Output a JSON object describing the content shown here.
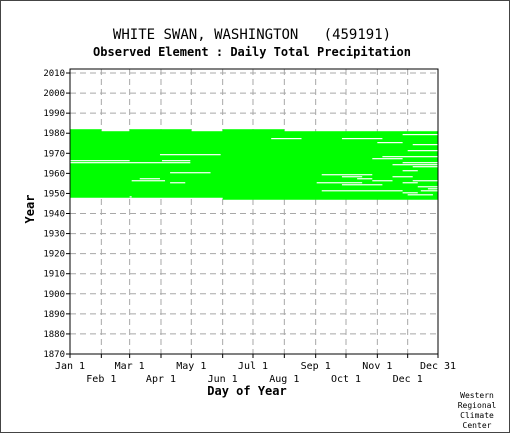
{
  "chart_data": {
    "type": "heatmap",
    "title": "WHITE SWAN, WASHINGTON   (459191)",
    "subtitle": "Observed Element : Daily Total Precipitation",
    "xlabel": "Day of Year",
    "ylabel": "Year",
    "x_ticks_upper": [
      {
        "label": "Jan 1",
        "day": 1
      },
      {
        "label": "Mar 1",
        "day": 60
      },
      {
        "label": "May 1",
        "day": 121
      },
      {
        "label": "Jul 1",
        "day": 182
      },
      {
        "label": "Sep 1",
        "day": 244
      },
      {
        "label": "Nov 1",
        "day": 305
      },
      {
        "label": "Dec 31",
        "day": 365
      }
    ],
    "x_ticks_lower": [
      {
        "label": "Feb 1",
        "day": 32
      },
      {
        "label": "Apr 1",
        "day": 91
      },
      {
        "label": "Jun 1",
        "day": 152
      },
      {
        "label": "Aug 1",
        "day": 213
      },
      {
        "label": "Oct 1",
        "day": 274
      },
      {
        "label": "Dec 1",
        "day": 335
      }
    ],
    "y_ticks": [
      1870,
      1880,
      1890,
      1900,
      1910,
      1920,
      1930,
      1940,
      1950,
      1960,
      1970,
      1980,
      1990,
      2000,
      2010
    ],
    "xlim": [
      1,
      365
    ],
    "ylim": [
      1870,
      2012
    ],
    "grid": true,
    "data_color": "#00ff00",
    "record_start_year": 1947,
    "record_end_year": 1981,
    "observed_spans": [
      {
        "year": 1981,
        "days": [
          [
            1,
            32
          ],
          [
            60,
            121
          ],
          [
            152,
            213
          ]
        ]
      },
      {
        "year": 1980,
        "days": [
          [
            1,
            365
          ]
        ]
      },
      {
        "year": 1979,
        "days": [
          [
            1,
            365
          ]
        ]
      },
      {
        "year": 1978,
        "days": [
          [
            1,
            365
          ]
        ]
      },
      {
        "year": 1977,
        "days": [
          [
            1,
            365
          ]
        ]
      },
      {
        "year": 1976,
        "days": [
          [
            1,
            365
          ]
        ]
      },
      {
        "year": 1975,
        "days": [
          [
            1,
            365
          ]
        ]
      },
      {
        "year": 1974,
        "days": [
          [
            1,
            365
          ]
        ]
      },
      {
        "year": 1973,
        "days": [
          [
            1,
            365
          ]
        ]
      },
      {
        "year": 1972,
        "days": [
          [
            1,
            365
          ]
        ]
      },
      {
        "year": 1971,
        "days": [
          [
            1,
            365
          ]
        ]
      },
      {
        "year": 1970,
        "days": [
          [
            1,
            365
          ]
        ]
      },
      {
        "year": 1969,
        "days": [
          [
            1,
            365
          ]
        ]
      },
      {
        "year": 1968,
        "days": [
          [
            1,
            365
          ]
        ]
      },
      {
        "year": 1967,
        "days": [
          [
            1,
            365
          ]
        ]
      },
      {
        "year": 1966,
        "days": [
          [
            1,
            365
          ]
        ]
      },
      {
        "year": 1965,
        "days": [
          [
            1,
            365
          ]
        ]
      },
      {
        "year": 1964,
        "days": [
          [
            1,
            365
          ]
        ]
      },
      {
        "year": 1963,
        "days": [
          [
            1,
            365
          ]
        ]
      },
      {
        "year": 1962,
        "days": [
          [
            1,
            365
          ]
        ]
      },
      {
        "year": 1961,
        "days": [
          [
            1,
            365
          ]
        ]
      },
      {
        "year": 1960,
        "days": [
          [
            1,
            365
          ]
        ]
      },
      {
        "year": 1959,
        "days": [
          [
            1,
            365
          ]
        ]
      },
      {
        "year": 1958,
        "days": [
          [
            1,
            365
          ]
        ]
      },
      {
        "year": 1957,
        "days": [
          [
            1,
            365
          ]
        ]
      },
      {
        "year": 1956,
        "days": [
          [
            1,
            365
          ]
        ]
      },
      {
        "year": 1955,
        "days": [
          [
            1,
            365
          ]
        ]
      },
      {
        "year": 1954,
        "days": [
          [
            1,
            365
          ]
        ]
      },
      {
        "year": 1953,
        "days": [
          [
            1,
            365
          ]
        ]
      },
      {
        "year": 1952,
        "days": [
          [
            1,
            365
          ]
        ]
      },
      {
        "year": 1951,
        "days": [
          [
            1,
            365
          ]
        ]
      },
      {
        "year": 1950,
        "days": [
          [
            1,
            365
          ]
        ]
      },
      {
        "year": 1949,
        "days": [
          [
            1,
            365
          ]
        ]
      },
      {
        "year": 1948,
        "days": [
          [
            1,
            365
          ]
        ]
      },
      {
        "year": 1947,
        "days": [
          [
            152,
            365
          ]
        ]
      }
    ],
    "missing_spans": [
      {
        "year": 1979,
        "days": [
          [
            330,
            365
          ]
        ]
      },
      {
        "year": 1977,
        "days": [
          [
            200,
            230
          ],
          [
            270,
            310
          ]
        ]
      },
      {
        "year": 1975,
        "days": [
          [
            305,
            330
          ]
        ]
      },
      {
        "year": 1974,
        "days": [
          [
            340,
            365
          ]
        ]
      },
      {
        "year": 1971,
        "days": [
          [
            335,
            365
          ]
        ]
      },
      {
        "year": 1969,
        "days": [
          [
            90,
            150
          ]
        ]
      },
      {
        "year": 1968,
        "days": [
          [
            310,
            365
          ]
        ]
      },
      {
        "year": 1967,
        "days": [
          [
            300,
            330
          ]
        ]
      },
      {
        "year": 1966,
        "days": [
          [
            1,
            60
          ],
          [
            92,
            120
          ]
        ]
      },
      {
        "year": 1965,
        "days": [
          [
            1,
            120
          ],
          [
            330,
            365
          ]
        ]
      },
      {
        "year": 1964,
        "days": [
          [
            320,
            365
          ]
        ]
      },
      {
        "year": 1963,
        "days": [
          [
            340,
            365
          ]
        ]
      },
      {
        "year": 1961,
        "days": [
          [
            330,
            345
          ]
        ]
      },
      {
        "year": 1960,
        "days": [
          [
            100,
            140
          ]
        ]
      },
      {
        "year": 1959,
        "days": [
          [
            250,
            300
          ]
        ]
      },
      {
        "year": 1958,
        "days": [
          [
            270,
            290
          ],
          [
            320,
            340
          ]
        ]
      },
      {
        "year": 1957,
        "days": [
          [
            70,
            90
          ],
          [
            285,
            300
          ]
        ]
      },
      {
        "year": 1956,
        "days": [
          [
            62,
            95
          ],
          [
            300,
            320
          ],
          [
            340,
            365
          ]
        ]
      },
      {
        "year": 1955,
        "days": [
          [
            100,
            115
          ],
          [
            245,
            290
          ],
          [
            330,
            345
          ]
        ]
      },
      {
        "year": 1954,
        "days": [
          [
            270,
            310
          ]
        ]
      },
      {
        "year": 1953,
        "days": [
          [
            345,
            365
          ]
        ]
      },
      {
        "year": 1952,
        "days": [
          [
            355,
            365
          ]
        ]
      },
      {
        "year": 1951,
        "days": [
          [
            250,
            330
          ],
          [
            348,
            365
          ]
        ]
      },
      {
        "year": 1950,
        "days": [
          [
            330,
            345
          ]
        ]
      },
      {
        "year": 1949,
        "days": [
          [
            335,
            360
          ]
        ]
      },
      {
        "year": 1948,
        "days": [
          [
            60,
            62
          ]
        ]
      }
    ]
  },
  "credit": [
    "Western",
    "Regional",
    "Climate",
    "Center"
  ]
}
